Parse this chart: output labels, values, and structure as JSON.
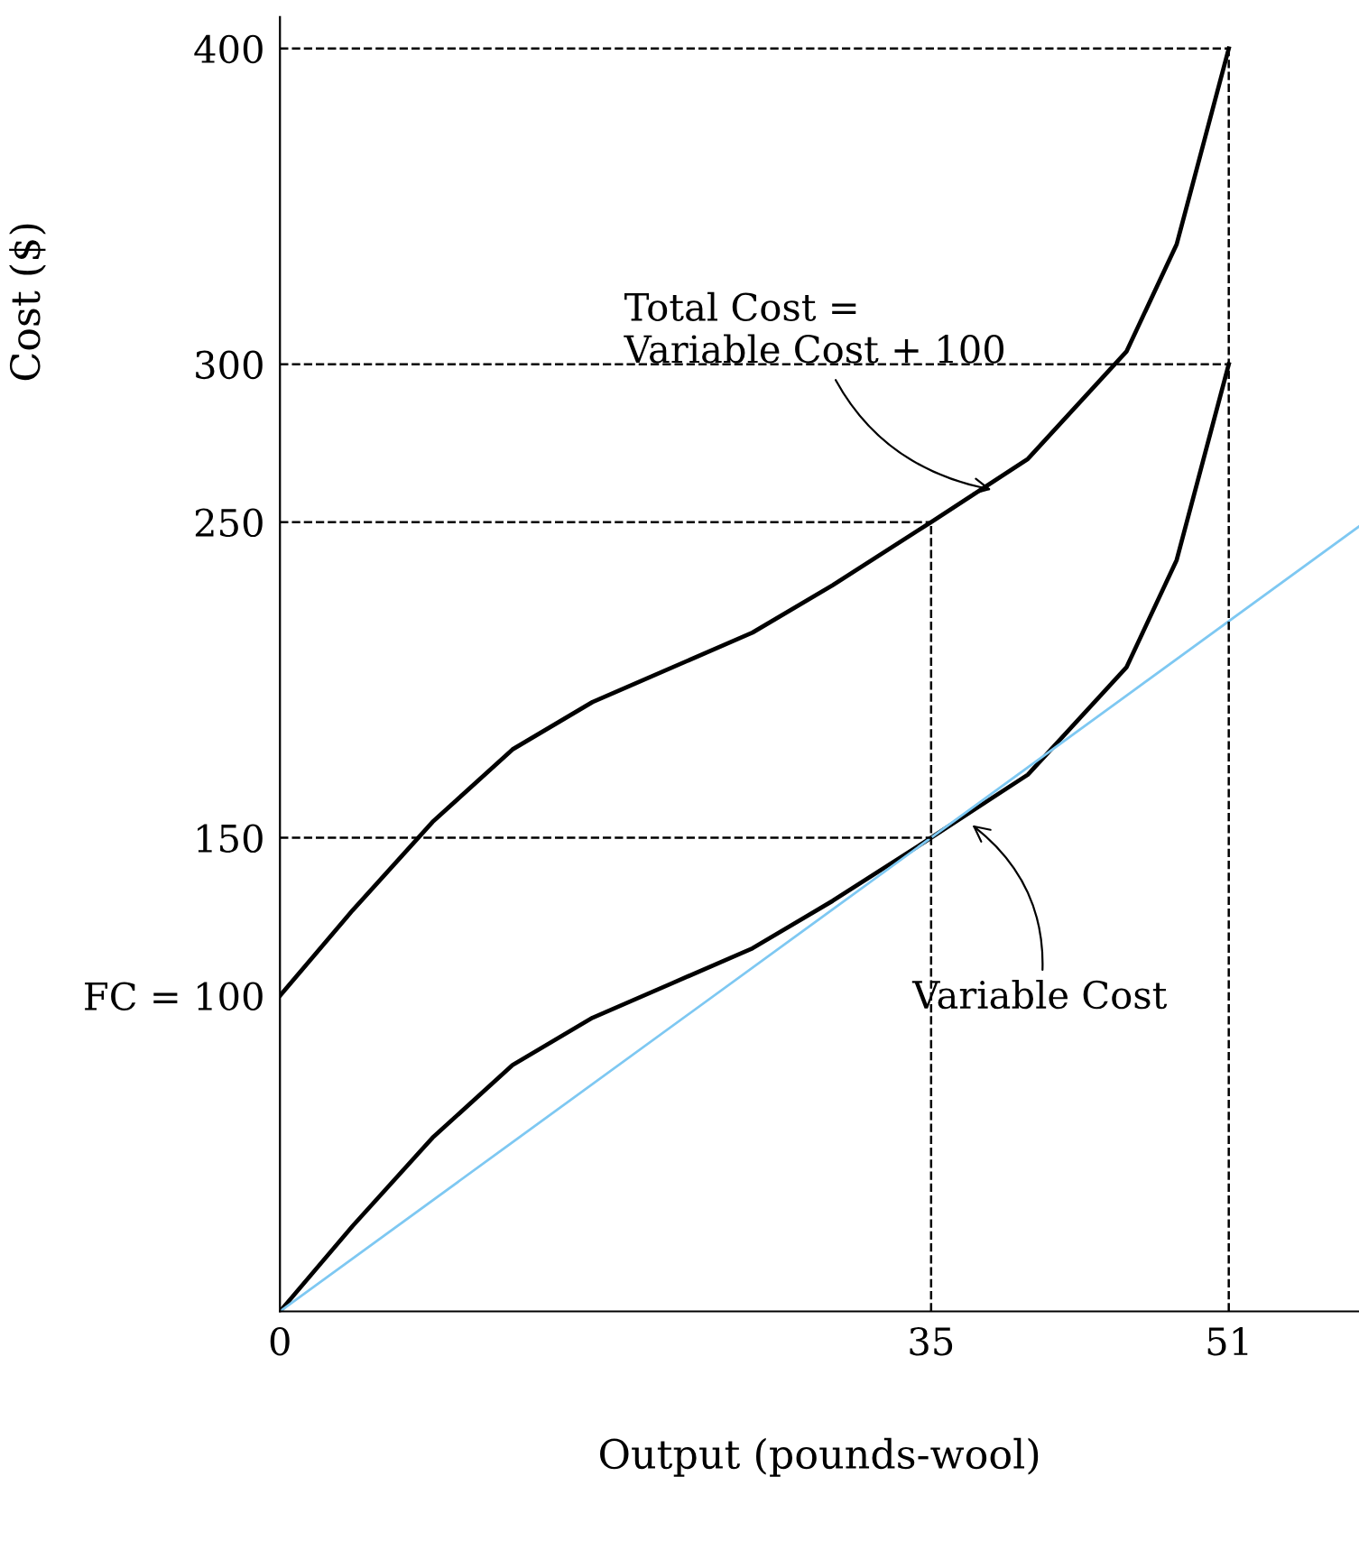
{
  "chart_data": {
    "type": "line",
    "xlabel": "Output (pounds-wool)",
    "ylabel": "Cost ($)",
    "xlim": [
      0,
      58
    ],
    "ylim": [
      0,
      410
    ],
    "xticks": [
      0,
      35,
      51
    ],
    "yticks": [
      {
        "value": 100,
        "label": "FC = 100"
      },
      150,
      250,
      300,
      400
    ],
    "series": [
      {
        "color": "#000000",
        "x": [
          0,
          3.9,
          8.2,
          12.5,
          16.8,
          21.1,
          25.4,
          29.7,
          35,
          40.2,
          45.5,
          48.2,
          51
        ],
        "values": [
          100,
          127,
          155,
          178,
          193,
          204,
          215,
          230,
          250,
          270,
          304,
          338,
          400
        ]
      },
      {
        "color": "#000000",
        "x": [
          0,
          3.9,
          8.2,
          12.5,
          16.8,
          21.1,
          25.4,
          29.7,
          35,
          40.2,
          45.5,
          48.2,
          51
        ],
        "values": [
          0,
          27,
          55,
          78,
          93,
          104,
          115,
          130,
          150,
          170,
          204,
          238,
          300
        ]
      },
      {
        "color": "#7ec8f2",
        "x": [
          0,
          58
        ],
        "values": [
          0,
          248.6
        ]
      }
    ],
    "ref_lines": [
      {
        "axis": "y",
        "value": 150,
        "line_style": "dashed"
      },
      {
        "axis": "y",
        "value": 250,
        "line_style": "dashed"
      },
      {
        "axis": "y",
        "value": 300,
        "line_style": "dashed"
      },
      {
        "axis": "y",
        "value": 400,
        "line_style": "dashed"
      },
      {
        "axis": "x",
        "value": 35,
        "line_style": "dashed"
      },
      {
        "axis": "x",
        "value": 51,
        "line_style": "dashed"
      }
    ],
    "annotations": [
      {
        "text": "Total Cost =\nVariable Cost + 100",
        "x": 38.5,
        "y": 260
      },
      {
        "text": "Variable Cost",
        "x": 37,
        "y": 155
      }
    ],
    "grid": false,
    "legend": false,
    "line_style": "solid",
    "marker": "none"
  }
}
